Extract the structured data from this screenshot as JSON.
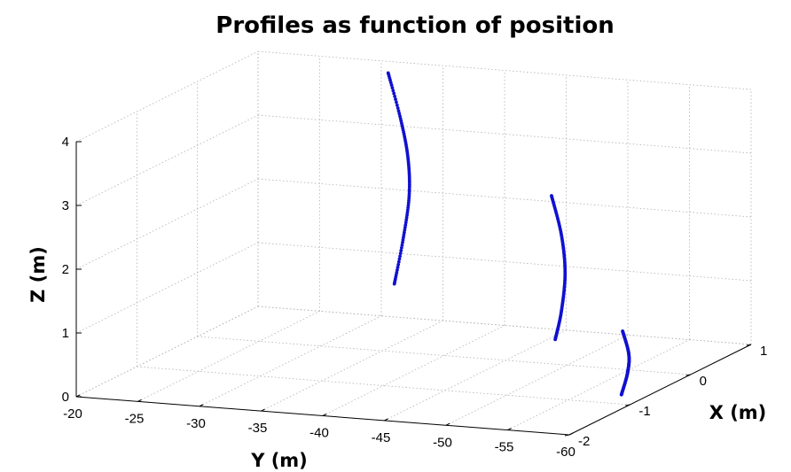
{
  "chart_data": {
    "type": "scatter3d",
    "title": "Profiles as function of position",
    "xlabel": "X (m)",
    "ylabel": "Y (m)",
    "zlabel": "Z (m)",
    "xlim": [
      -2,
      1
    ],
    "ylim": [
      -60,
      -20
    ],
    "zlim": [
      0,
      4
    ],
    "xticks": [
      "-2",
      "-1",
      "0",
      "1"
    ],
    "yticks": [
      "-20",
      "-25",
      "-30",
      "-35",
      "-40",
      "-45",
      "-50",
      "-55",
      "-60"
    ],
    "zticks": [
      "0",
      "1",
      "2",
      "3",
      "4"
    ],
    "grid": true,
    "color": "#1010d0",
    "series": [
      {
        "points": [
          {
            "x": 0.3,
            "y": -34.5,
            "z": 0.9
          },
          {
            "x": 0.3,
            "y": -35.2,
            "z": 1.6
          },
          {
            "x": 0.3,
            "y": -35.7,
            "z": 2.3
          },
          {
            "x": 0.3,
            "y": -35.6,
            "z": 2.9
          },
          {
            "x": 0.3,
            "y": -35.0,
            "z": 3.5
          },
          {
            "x": 0.3,
            "y": -34.0,
            "z": 4.2
          }
        ]
      },
      {
        "points": [
          {
            "x": -0.3,
            "y": -50.5,
            "z": 0.55
          },
          {
            "x": -0.3,
            "y": -51.0,
            "z": 1.0
          },
          {
            "x": -0.3,
            "y": -51.3,
            "z": 1.6
          },
          {
            "x": -0.3,
            "y": -51.0,
            "z": 2.2
          },
          {
            "x": -0.3,
            "y": -50.2,
            "z": 2.8
          }
        ]
      },
      {
        "points": [
          {
            "x": -1.1,
            "y": -59.8,
            "z": 0.2
          },
          {
            "x": -1.1,
            "y": -60.3,
            "z": 0.55
          },
          {
            "x": -1.1,
            "y": -60.4,
            "z": 0.85
          },
          {
            "x": -1.1,
            "y": -59.9,
            "z": 1.2
          }
        ]
      }
    ]
  }
}
